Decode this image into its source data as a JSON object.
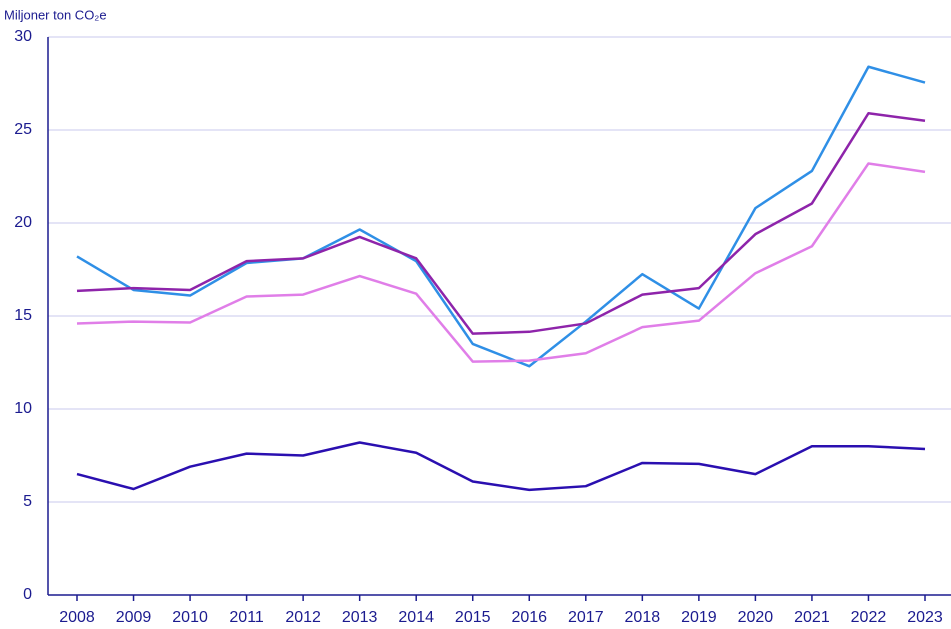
{
  "chart_data": {
    "type": "line",
    "y_axis_label": "Miljoner ton CO₂e",
    "categories": [
      "2008",
      "2009",
      "2010",
      "2011",
      "2012",
      "2013",
      "2014",
      "2015",
      "2016",
      "2017",
      "2018",
      "2019",
      "2020",
      "2021",
      "2022",
      "2023"
    ],
    "series": [
      {
        "color": "#2f8fe6",
        "values": [
          18.2,
          16.4,
          16.1,
          17.85,
          18.1,
          19.65,
          17.95,
          13.5,
          12.3,
          14.7,
          17.25,
          15.4,
          20.8,
          22.8,
          28.4,
          27.55
        ]
      },
      {
        "color": "#8e24aa",
        "values": [
          16.35,
          16.5,
          16.4,
          17.95,
          18.1,
          19.25,
          18.1,
          14.05,
          14.15,
          14.6,
          16.15,
          16.5,
          19.4,
          21.05,
          25.9,
          25.5
        ]
      },
      {
        "color": "#e07ee8",
        "values": [
          14.6,
          14.7,
          14.65,
          16.05,
          16.15,
          17.15,
          16.2,
          12.55,
          12.6,
          13.0,
          14.4,
          14.75,
          17.3,
          18.75,
          23.2,
          22.75
        ]
      },
      {
        "color": "#2a0fb0",
        "values": [
          6.5,
          5.7,
          6.9,
          7.6,
          7.5,
          8.2,
          7.65,
          6.1,
          5.65,
          5.85,
          7.1,
          7.05,
          6.5,
          8.0,
          8.0,
          7.85
        ]
      }
    ],
    "ylim": [
      0,
      30
    ],
    "yticks": [
      0,
      5,
      10,
      15,
      20,
      25,
      30
    ],
    "grid": true
  }
}
